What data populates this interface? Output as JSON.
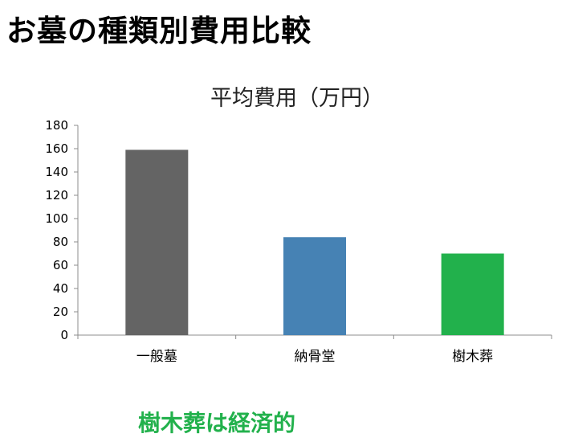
{
  "page": {
    "title": "お墓の種類別費用比較",
    "conclusion": "樹木葬は経済的",
    "conclusion_color": "#22b14c"
  },
  "chart_data": {
    "type": "bar",
    "title": "平均費用（万円）",
    "categories": [
      "一般墓",
      "納骨堂",
      "樹木葬"
    ],
    "values": [
      159,
      84,
      70
    ],
    "colors": [
      "#646464",
      "#4682b4",
      "#22b14c"
    ],
    "xlabel": "",
    "ylabel": "",
    "ylim": [
      0,
      180
    ],
    "yticks": [
      0,
      20,
      40,
      60,
      80,
      100,
      120,
      140,
      160,
      180
    ],
    "grid": false,
    "legend": "none"
  }
}
